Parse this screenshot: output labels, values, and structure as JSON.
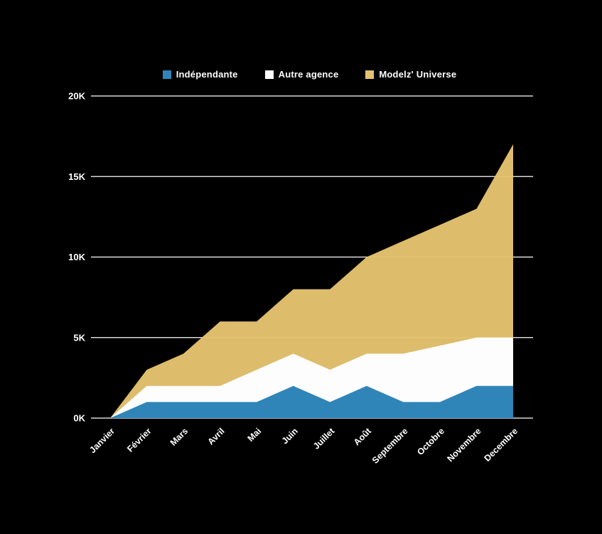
{
  "chart_data": {
    "type": "area",
    "stacked": true,
    "title": "",
    "xlabel": "",
    "ylabel": "",
    "legend_position": "top",
    "grid": "horizontal",
    "background_color": "#000000",
    "text_color": "#ffffff",
    "gridline_color": "#ffffff",
    "x_categories": [
      "Janvier",
      "Février",
      "Mars",
      "Avril",
      "Mai",
      "Juin",
      "Juillet",
      "Août",
      "Septembre",
      "Octobre",
      "Novembre",
      "Decembre"
    ],
    "y_ticks": [
      {
        "value": 0,
        "label": "0K"
      },
      {
        "value": 5000,
        "label": "5K"
      },
      {
        "value": 10000,
        "label": "10K"
      },
      {
        "value": 15000,
        "label": "15K"
      },
      {
        "value": 20000,
        "label": "20K"
      }
    ],
    "ylim": [
      0,
      20000
    ],
    "series": [
      {
        "name": "Indépendante",
        "color": "#3085b8",
        "values": [
          0,
          1000,
          1000,
          1000,
          1000,
          2000,
          1000,
          2000,
          1000,
          1000,
          2000,
          2000
        ]
      },
      {
        "name": "Autre agence",
        "color": "#fdfdfd",
        "values": [
          0,
          1000,
          1000,
          1000,
          2000,
          2000,
          2000,
          2000,
          3000,
          3500,
          3000,
          3000
        ]
      },
      {
        "name": "Modelz' Universe",
        "color": "#e4c26e",
        "values": [
          0,
          1000,
          2000,
          4000,
          3000,
          4000,
          5000,
          6000,
          7000,
          7500,
          8000,
          12000
        ]
      }
    ],
    "stacked_totals": [
      0,
      3000,
      4000,
      6000,
      6000,
      8000,
      8000,
      10000,
      11000,
      12000,
      13000,
      17000
    ]
  }
}
